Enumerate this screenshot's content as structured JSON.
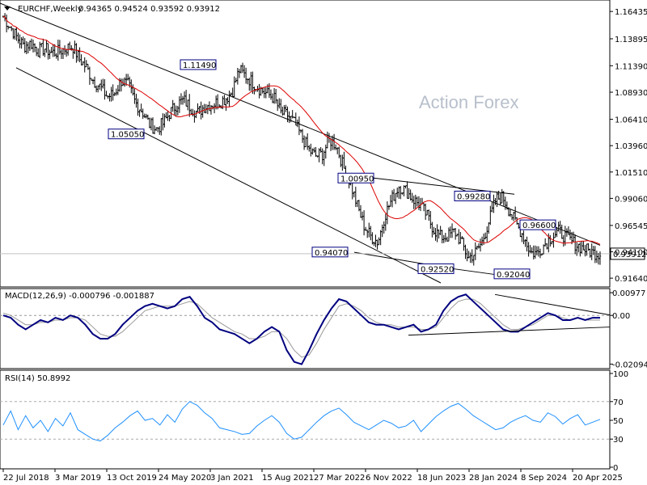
{
  "chart_data": [
    {
      "type": "candlestick",
      "title": "EURCHF,Weekly",
      "ohlc_label": "0.94365 0.94524 0.93592 0.93912",
      "last_price": "0.93912",
      "watermark": "Action Forex",
      "y_ticks": [
        "1.16435",
        "1.13895",
        "1.11390",
        "1.08930",
        "1.06410",
        "1.03960",
        "1.01510",
        "0.99060",
        "0.96545",
        "0.94100",
        "0.91640"
      ],
      "ylim": [
        0.912,
        1.172
      ],
      "x_ticks": [
        "22 Jul 2018",
        "3 Mar 2019",
        "13 Oct 2019",
        "24 May 2020",
        "3 Jan 2021",
        "15 Aug 2021",
        "27 Mar 2022",
        "6 Nov 2022",
        "18 Jun 2023",
        "28 Jan 2024",
        "8 Sep 2024",
        "20 Apr 2025"
      ],
      "key_levels": [
        "1.05050",
        "1.11490",
        "0.94070",
        "1.00950",
        "0.92520",
        "0.99280",
        "0.92040",
        "0.96600"
      ],
      "moving_average": "on",
      "price_path": [
        1.16,
        1.15,
        1.14,
        1.132,
        1.135,
        1.128,
        1.13,
        1.126,
        1.127,
        1.13,
        1.132,
        1.12,
        1.112,
        1.1,
        1.094,
        1.085,
        1.088,
        1.1,
        1.096,
        1.08,
        1.072,
        1.06,
        1.055,
        1.06,
        1.07,
        1.078,
        1.082,
        1.075,
        1.07,
        1.076,
        1.078,
        1.08,
        1.083,
        1.09,
        1.11,
        1.104,
        1.098,
        1.092,
        1.088,
        1.084,
        1.07,
        1.068,
        1.06,
        1.048,
        1.036,
        1.03,
        1.032,
        1.045,
        1.04,
        1.02,
        1.005,
        0.984,
        0.965,
        0.955,
        0.95,
        0.975,
        0.99,
        1.002,
        0.998,
        0.99,
        0.985,
        0.975,
        0.962,
        0.955,
        0.955,
        0.96,
        0.95,
        0.935,
        0.94,
        0.95,
        0.97,
        0.99,
        0.992,
        0.978,
        0.966,
        0.955,
        0.94,
        0.94,
        0.948,
        0.955,
        0.96,
        0.955,
        0.95,
        0.946,
        0.943,
        0.94,
        0.939
      ]
    },
    {
      "type": "line",
      "title": "MACD(12,26,9) -0.000796 -0.001887",
      "y_ticks": [
        "0.00977",
        "0.00",
        "-0.020949"
      ],
      "ylim": [
        -0.0215,
        0.0105
      ],
      "series": [
        {
          "values": [
            0.0,
            -0.001,
            -0.004,
            -0.006,
            -0.004,
            -0.002,
            -0.003,
            -0.001,
            -0.002,
            0.0,
            -0.001,
            -0.004,
            -0.008,
            -0.01,
            -0.01,
            -0.008,
            -0.004,
            -0.001,
            0.002,
            0.004,
            0.005,
            0.004,
            0.003,
            0.004,
            0.007,
            0.008,
            0.004,
            -0.001,
            -0.003,
            -0.006,
            -0.007,
            -0.008,
            -0.01,
            -0.012,
            -0.01,
            -0.007,
            -0.005,
            -0.007,
            -0.015,
            -0.02,
            -0.021,
            -0.015,
            -0.008,
            -0.002,
            0.003,
            0.007,
            0.006,
            0.003,
            0.0,
            -0.003,
            -0.004,
            -0.004,
            -0.005,
            -0.006,
            -0.005,
            -0.004,
            -0.007,
            -0.006,
            -0.004,
            0.002,
            0.006,
            0.008,
            0.009,
            0.006,
            0.003,
            0.0,
            -0.003,
            -0.006,
            -0.007,
            -0.007,
            -0.005,
            -0.003,
            -0.001,
            0.001,
            0.0,
            -0.002,
            -0.002,
            -0.001,
            -0.002,
            -0.001,
            -0.001
          ]
        },
        {
          "values": [
            0.001,
            0.0,
            -0.002,
            -0.004,
            -0.004,
            -0.003,
            -0.003,
            -0.002,
            -0.002,
            -0.001,
            -0.001,
            -0.002,
            -0.005,
            -0.008,
            -0.009,
            -0.009,
            -0.007,
            -0.004,
            -0.001,
            0.002,
            0.003,
            0.004,
            0.004,
            0.004,
            0.005,
            0.006,
            0.005,
            0.002,
            -0.001,
            -0.003,
            -0.005,
            -0.007,
            -0.008,
            -0.01,
            -0.01,
            -0.009,
            -0.007,
            -0.007,
            -0.01,
            -0.015,
            -0.018,
            -0.017,
            -0.012,
            -0.006,
            -0.001,
            0.004,
            0.005,
            0.004,
            0.002,
            -0.001,
            -0.003,
            -0.004,
            -0.004,
            -0.005,
            -0.005,
            -0.005,
            -0.006,
            -0.006,
            -0.005,
            -0.001,
            0.003,
            0.006,
            0.007,
            0.007,
            0.005,
            0.002,
            -0.001,
            -0.004,
            -0.006,
            -0.006,
            -0.005,
            -0.004,
            -0.002,
            0.0,
            0.0,
            -0.001,
            -0.002,
            -0.001,
            -0.002,
            -0.002,
            -0.002
          ]
        }
      ]
    },
    {
      "type": "line",
      "title": "RSI(14) 50.8992",
      "y_ticks": [
        "100",
        "70",
        "50",
        "30",
        "0"
      ],
      "ylim": [
        0,
        100
      ],
      "series": [
        {
          "values": [
            45,
            60,
            40,
            55,
            42,
            50,
            38,
            52,
            44,
            58,
            40,
            35,
            30,
            28,
            34,
            42,
            48,
            55,
            60,
            50,
            52,
            45,
            56,
            48,
            62,
            70,
            66,
            58,
            52,
            42,
            40,
            38,
            35,
            36,
            44,
            50,
            55,
            48,
            36,
            30,
            32,
            40,
            48,
            55,
            60,
            63,
            56,
            48,
            44,
            40,
            45,
            50,
            47,
            42,
            44,
            50,
            38,
            46,
            54,
            60,
            65,
            68,
            62,
            55,
            50,
            45,
            40,
            42,
            48,
            52,
            55,
            50,
            48,
            58,
            54,
            46,
            52,
            56,
            45,
            48,
            51
          ]
        }
      ]
    }
  ],
  "colors": {
    "bar": "#000000",
    "ma": "#dd0000",
    "macd_line": "#000080",
    "signal_line": "#999999",
    "rsi_line": "#1e90ff",
    "channel": "#000000",
    "label_border": "#000080"
  }
}
